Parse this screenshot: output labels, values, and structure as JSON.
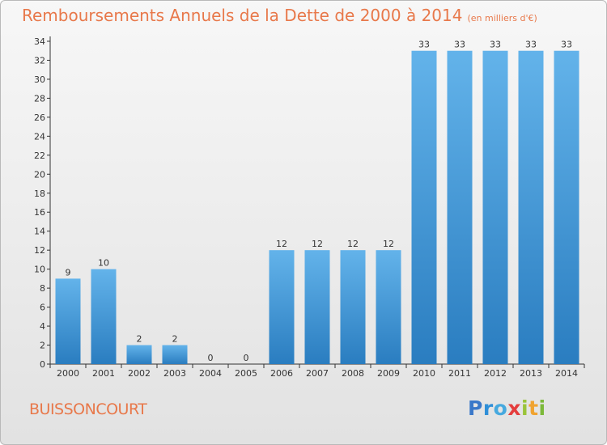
{
  "header": {
    "title": "Remboursements Annuels de la Dette de 2000 à 2014",
    "unit": "(en milliers d'€)"
  },
  "footer": {
    "commune": "BUISSONCOURT",
    "logo": "Proxiti"
  },
  "chart_data": {
    "type": "bar",
    "title": "Remboursements Annuels de la Dette de 2000 à 2014",
    "subtitle": "(en milliers d'€)",
    "xlabel": "",
    "ylabel": "",
    "categories": [
      "2000",
      "2001",
      "2002",
      "2003",
      "2004",
      "2005",
      "2006",
      "2007",
      "2008",
      "2009",
      "2010",
      "2011",
      "2012",
      "2013",
      "2014"
    ],
    "values": [
      9,
      10,
      2,
      2,
      0,
      0,
      12,
      12,
      12,
      12,
      33,
      33,
      33,
      33,
      33
    ],
    "ylim": [
      0,
      34
    ],
    "yticks": [
      0,
      2,
      4,
      6,
      8,
      10,
      12,
      14,
      16,
      18,
      20,
      22,
      24,
      26,
      28,
      30,
      32,
      34
    ],
    "grid": false,
    "legend": "none",
    "colors": {
      "bar_light": "#63b3ea",
      "bar_dark": "#2a7dc0",
      "axis": "#333333"
    }
  }
}
